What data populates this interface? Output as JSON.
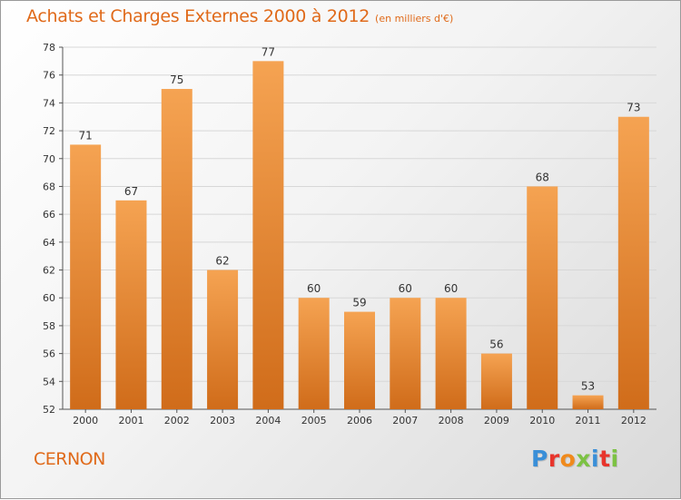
{
  "header": {
    "title": "Achats et Charges Externes 2000 à 2012",
    "subtitle": "(en milliers d'€)"
  },
  "footer": {
    "town": "CERNON",
    "logo_text": "Proxiti",
    "logo_colors": [
      "#3a8fd8",
      "#e8352c",
      "#f08a1c",
      "#7cc243",
      "#3a8fd8",
      "#e8352c",
      "#7cc243"
    ]
  },
  "chart_data": {
    "type": "bar",
    "title": "Achats et Charges Externes 2000 à 2012",
    "subtitle": "(en milliers d'€)",
    "categories": [
      "2000",
      "2001",
      "2002",
      "2003",
      "2004",
      "2005",
      "2006",
      "2007",
      "2008",
      "2009",
      "2010",
      "2011",
      "2012"
    ],
    "values": [
      71,
      67,
      75,
      62,
      77,
      60,
      59,
      60,
      60,
      56,
      68,
      53,
      73
    ],
    "data_labels": [
      "71",
      "67",
      "75",
      "62",
      "77",
      "60",
      "59",
      "60",
      "60",
      "56",
      "68",
      "53",
      "73"
    ],
    "ylim": [
      52,
      78
    ],
    "yticks": [
      52,
      54,
      56,
      58,
      60,
      62,
      64,
      66,
      68,
      70,
      72,
      74,
      76,
      78
    ],
    "xlabel": "",
    "ylabel": "",
    "grid": true,
    "legend": "none",
    "colors": {
      "bar_light": "#f5a352",
      "bar_dark": "#d06c1a",
      "text": "#e06a1a",
      "grid": "#d7d7d7",
      "axis": "#555555"
    }
  }
}
